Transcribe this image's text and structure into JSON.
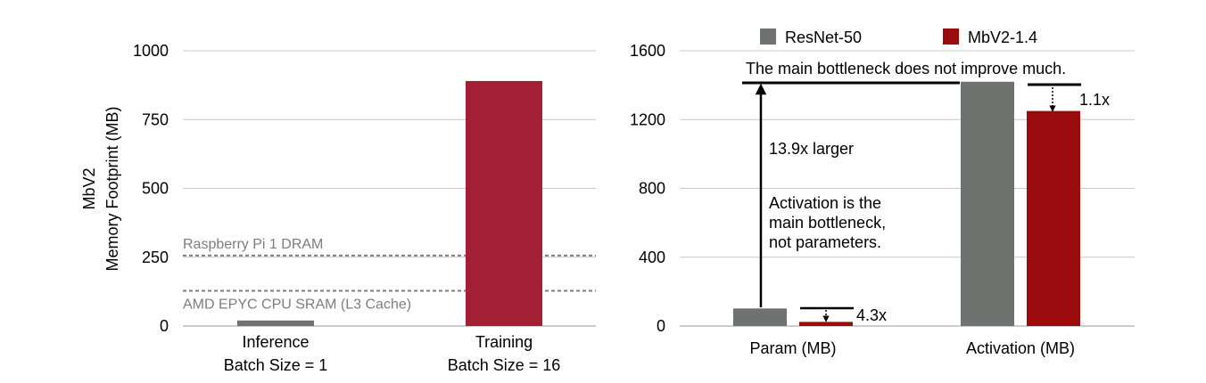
{
  "colors": {
    "bar_gray": "#6f7370",
    "bar_crimson": "#a21f34",
    "bar_red": "#9b0a0c",
    "grid": "#c8c8c8",
    "dashed_ref": "#7d7d7d",
    "ref_text": "#7d7d7d",
    "text": "#000000"
  },
  "chart_data": [
    {
      "type": "bar",
      "ylabel_line1": "MbV2",
      "ylabel_line2": "Memory Footprint (MB)",
      "ylim": [
        0,
        1000
      ],
      "yticks": [
        0,
        250,
        500,
        750,
        1000
      ],
      "grid": true,
      "categories": [
        {
          "line1": "Inference",
          "line2": "Batch Size = 1"
        },
        {
          "line1": "Training",
          "line2": "Batch Size = 16"
        }
      ],
      "values": [
        20,
        890
      ],
      "reference_lines": [
        {
          "label": "Raspberry Pi 1 DRAM",
          "value": 256,
          "label_position": "above"
        },
        {
          "label": "AMD EPYC CPU SRAM (L3 Cache)",
          "value": 128,
          "label_position": "below"
        }
      ]
    },
    {
      "type": "bar",
      "ylim": [
        0,
        1600
      ],
      "yticks": [
        0,
        400,
        800,
        1200,
        1600
      ],
      "grid": true,
      "legend_position": "top",
      "categories": [
        "Param (MB)",
        "Activation (MB)"
      ],
      "series": [
        {
          "name": "ResNet-50",
          "values": [
            102,
            1420
          ]
        },
        {
          "name": "MbV2-1.4",
          "values": [
            24,
            1250
          ]
        }
      ],
      "annotations": {
        "top_note": "The main bottleneck does not improve much.",
        "ratio_label": "13.9x larger",
        "main_note": [
          "Activation is the",
          "main bottleneck,",
          "not parameters."
        ],
        "param_reduction": "4.3x",
        "activation_reduction": "1.1x"
      }
    }
  ]
}
